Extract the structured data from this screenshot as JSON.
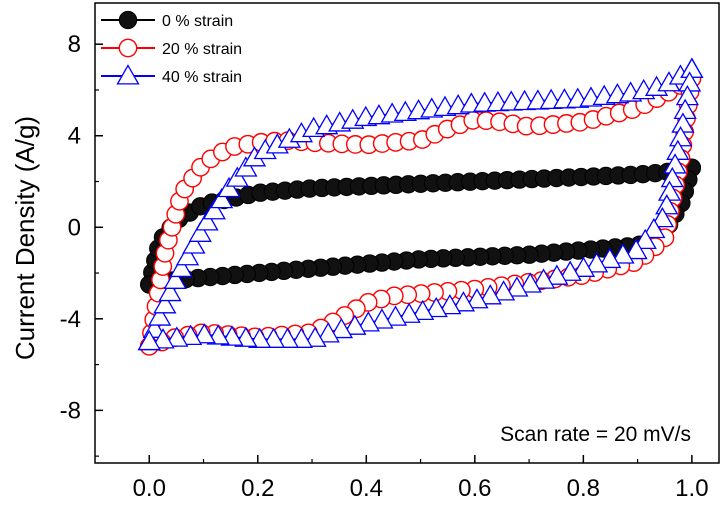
{
  "chart_data": {
    "type": "scatter",
    "title": "",
    "xlabel": "",
    "ylabel": "Current Density (A/g)",
    "xlim": [
      -0.1,
      1.05
    ],
    "ylim": [
      -10.3,
      9.8
    ],
    "xticks": [
      0.0,
      0.2,
      0.4,
      0.6,
      0.8,
      1.0
    ],
    "xtick_labels": [
      "0.0",
      "0.2",
      "0.4",
      "0.6",
      "0.8",
      "1.0"
    ],
    "yticks": [
      -8,
      -4,
      0,
      4,
      8
    ],
    "ytick_labels": [
      "-8",
      "-4",
      "0",
      "4",
      "8"
    ],
    "grid": false,
    "legend_position": "top-left",
    "annotation": "Scan rate = 20 mV/s",
    "series": [
      {
        "name": "0 % strain",
        "color": "#000000",
        "marker": "filled-circle",
        "upper": {
          "x": [
            0.0,
            0.02,
            0.05,
            0.1,
            0.2,
            0.3,
            0.4,
            0.5,
            0.6,
            0.7,
            0.8,
            0.9,
            0.95,
            1.0
          ],
          "y": [
            -2.5,
            -0.6,
            0.3,
            1.0,
            1.5,
            1.7,
            1.8,
            1.9,
            2.0,
            2.1,
            2.2,
            2.3,
            2.4,
            2.6
          ]
        },
        "lower": {
          "x": [
            1.0,
            0.98,
            0.95,
            0.9,
            0.8,
            0.7,
            0.6,
            0.5,
            0.4,
            0.3,
            0.2,
            0.1,
            0.05,
            0.0
          ],
          "y": [
            2.6,
            1.0,
            -0.2,
            -0.8,
            -1.0,
            -1.2,
            -1.3,
            -1.4,
            -1.6,
            -1.8,
            -2.0,
            -2.2,
            -2.3,
            -2.5
          ]
        }
      },
      {
        "name": "20 % strain",
        "color": "#ff0000",
        "marker": "open-circle",
        "upper": {
          "x": [
            0.0,
            0.03,
            0.06,
            0.1,
            0.15,
            0.2,
            0.25,
            0.3,
            0.4,
            0.5,
            0.55,
            0.6,
            0.65,
            0.7,
            0.8,
            0.9,
            0.95,
            1.0
          ],
          "y": [
            -5.2,
            -1.0,
            1.5,
            2.8,
            3.5,
            3.7,
            3.8,
            3.7,
            3.6,
            3.8,
            4.3,
            4.7,
            4.6,
            4.4,
            4.6,
            5.2,
            5.8,
            6.5
          ]
        },
        "lower": {
          "x": [
            1.0,
            0.98,
            0.95,
            0.9,
            0.8,
            0.7,
            0.6,
            0.5,
            0.45,
            0.4,
            0.35,
            0.3,
            0.2,
            0.1,
            0.05,
            0.0
          ],
          "y": [
            6.5,
            3.0,
            -0.5,
            -1.5,
            -2.1,
            -2.4,
            -2.7,
            -2.9,
            -3.0,
            -3.3,
            -4.0,
            -4.6,
            -4.8,
            -4.6,
            -4.8,
            -5.2
          ]
        }
      },
      {
        "name": "40 % strain",
        "color": "#0000ff",
        "marker": "open-triangle",
        "upper": {
          "x": [
            0.0,
            0.05,
            0.1,
            0.15,
            0.2,
            0.3,
            0.4,
            0.5,
            0.6,
            0.7,
            0.8,
            0.9,
            0.95,
            1.0
          ],
          "y": [
            -5.0,
            -2.2,
            0.0,
            1.8,
            3.2,
            4.3,
            4.8,
            5.1,
            5.4,
            5.5,
            5.6,
            5.9,
            6.2,
            6.9
          ]
        },
        "lower": {
          "x": [
            1.0,
            0.98,
            0.95,
            0.9,
            0.8,
            0.7,
            0.6,
            0.5,
            0.4,
            0.35,
            0.3,
            0.2,
            0.1,
            0.0
          ],
          "y": [
            6.9,
            4.0,
            0.5,
            -1.0,
            -1.8,
            -2.5,
            -3.2,
            -3.7,
            -4.2,
            -4.5,
            -4.9,
            -4.9,
            -4.7,
            -5.0
          ]
        }
      }
    ]
  }
}
